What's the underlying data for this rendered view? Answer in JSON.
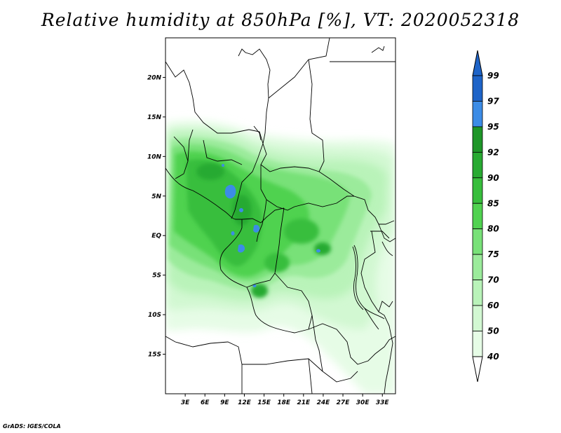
{
  "title": "Relative humidity at 850hPa [%], VT: 2020052318",
  "credit": "GrADS: IGES/COLA",
  "map": {
    "lat_range": [
      -20,
      25
    ],
    "lon_range": [
      0,
      35
    ],
    "lat_ticks": [
      {
        "value": 20,
        "label": "20N"
      },
      {
        "value": 15,
        "label": "15N"
      },
      {
        "value": 10,
        "label": "10N"
      },
      {
        "value": 5,
        "label": "5N"
      },
      {
        "value": 0,
        "label": "EQ"
      },
      {
        "value": -5,
        "label": "5S"
      },
      {
        "value": -10,
        "label": "10S"
      },
      {
        "value": -15,
        "label": "15S"
      }
    ],
    "lon_ticks": [
      {
        "value": 3,
        "label": "3E"
      },
      {
        "value": 6,
        "label": "6E"
      },
      {
        "value": 9,
        "label": "9E"
      },
      {
        "value": 12,
        "label": "12E"
      },
      {
        "value": 15,
        "label": "15E"
      },
      {
        "value": 18,
        "label": "18E"
      },
      {
        "value": 21,
        "label": "21E"
      },
      {
        "value": 24,
        "label": "24E"
      },
      {
        "value": 27,
        "label": "27E"
      },
      {
        "value": 30,
        "label": "30E"
      },
      {
        "value": 33,
        "label": "33E"
      }
    ]
  },
  "colorbar": {
    "labels": [
      "99",
      "97",
      "95",
      "92",
      "90",
      "85",
      "80",
      "75",
      "70",
      "60",
      "50",
      "40"
    ],
    "colors": [
      "#1e64c8",
      "#3c8ce6",
      "#1e9628",
      "#28aa32",
      "#37be3c",
      "#50d250",
      "#78e178",
      "#9beb9b",
      "#b9f3b9",
      "#d2f8d2",
      "#e6fce6"
    ]
  }
}
